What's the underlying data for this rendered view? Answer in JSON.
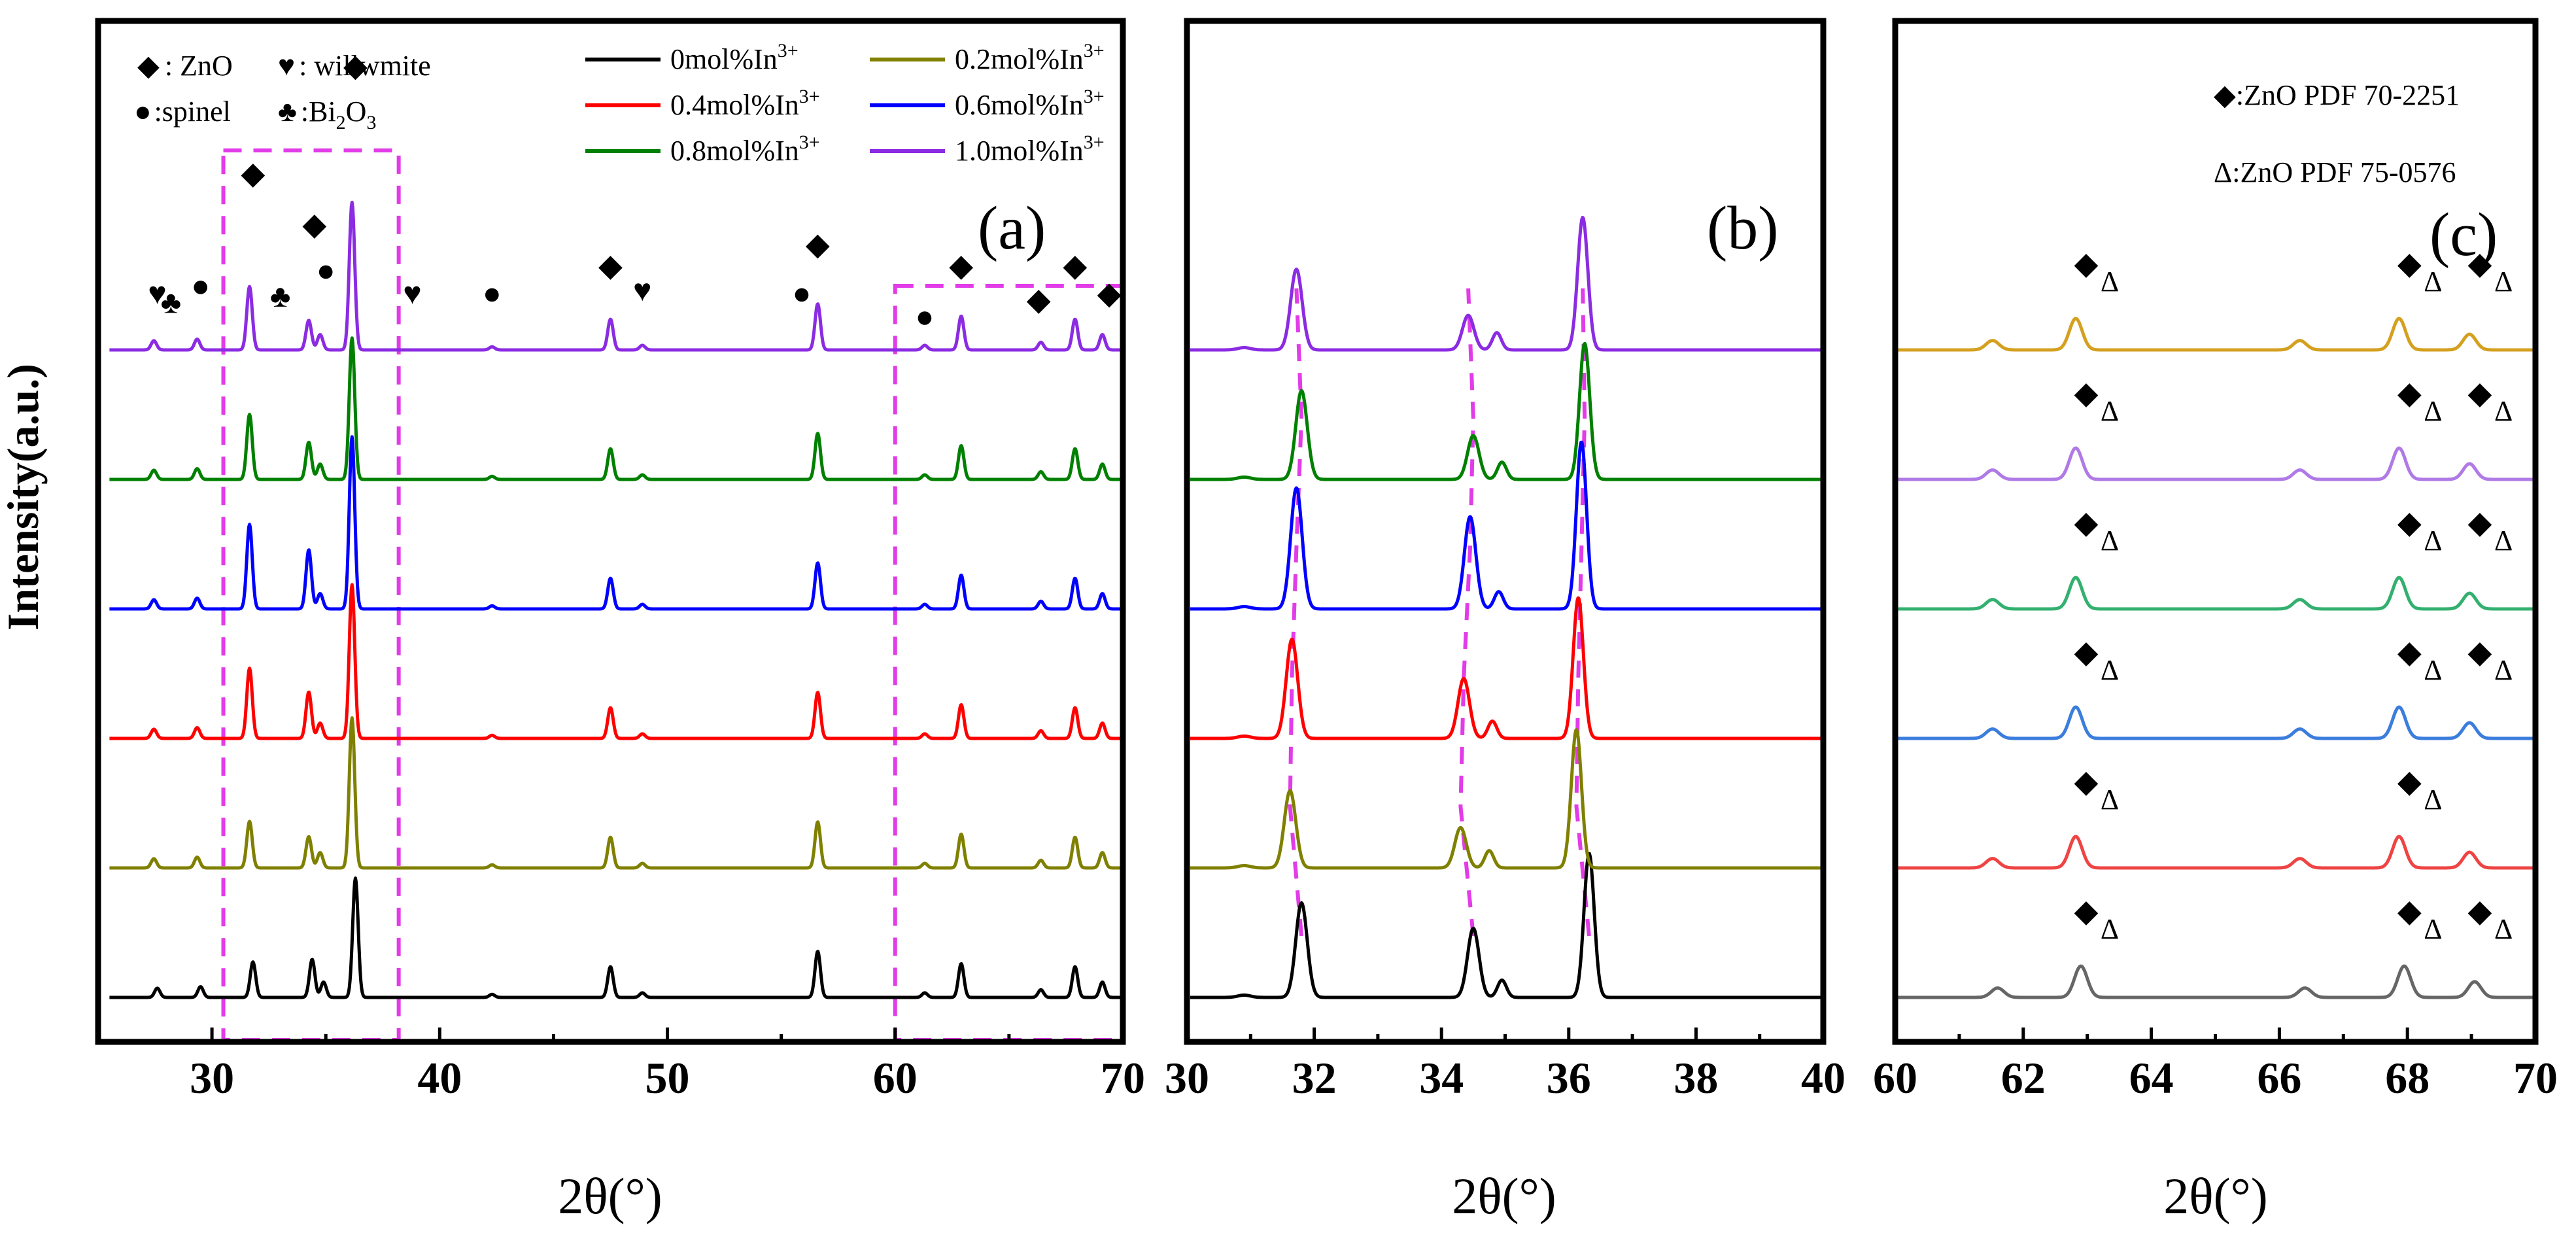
{
  "figure": {
    "ylabel": "Intensity(a.u.)",
    "xlabel": "2θ(°)"
  },
  "chart_data": [
    {
      "id": "a",
      "type": "line",
      "title": "(a)",
      "xlabel": "2θ(°)",
      "ylabel": "Intensity(a.u.)",
      "xlim": [
        25,
        70
      ],
      "x_ticks": [
        30,
        40,
        50,
        60,
        70
      ],
      "legend": [
        {
          "name": "0mol%In",
          "sup": "3+",
          "color": "#000000"
        },
        {
          "name": "0.2mol%In",
          "sup": "3+",
          "color": "#808000"
        },
        {
          "name": "0.4mol%In",
          "sup": "3+",
          "color": "#ff0000"
        },
        {
          "name": "0.6mol%In",
          "sup": "3+",
          "color": "#0000ff"
        },
        {
          "name": "0.8mol%In",
          "sup": "3+",
          "color": "#008000"
        },
        {
          "name": "1.0mol%In",
          "sup": "3+",
          "color": "#8b2be2"
        }
      ],
      "phase_key": [
        {
          "symbol": "◆",
          "label": ":  ZnO"
        },
        {
          "symbol": "♥",
          "label": ": willwmite"
        },
        {
          "symbol": "●",
          "label": ":spinel"
        },
        {
          "symbol": "♣",
          "label": ":Bi",
          "sub": "2",
          "tail": "O",
          "sub2": "3"
        }
      ],
      "series_order_bottom_to_top": [
        "0mol%In3+",
        "0.2mol%In3+",
        "0.4mol%In3+",
        "0.6mol%In3+",
        "0.8mol%In3+",
        "1.0mol%In3+"
      ],
      "series_offsets": [
        0,
        1,
        2,
        3,
        4,
        5
      ],
      "series_heights": [
        [
          0.42,
          0.45,
          0.97
        ],
        [
          0.55,
          0.37,
          1.22
        ],
        [
          0.83,
          0.55,
          1.25
        ],
        [
          1.0,
          0.7,
          1.4
        ],
        [
          0.77,
          0.44,
          1.15
        ],
        [
          0.75,
          0.35,
          1.2
        ]
      ],
      "peaks": [
        {
          "x": 27.6,
          "h": 0.06
        },
        {
          "x": 29.5,
          "h": 0.07
        },
        {
          "x": 31.8,
          "h": 0.55
        },
        {
          "x": 34.4,
          "h": 0.37
        },
        {
          "x": 34.9,
          "h": 0.1
        },
        {
          "x": 36.3,
          "h": 1.0
        },
        {
          "x": 42.3,
          "h": 0.02
        },
        {
          "x": 47.5,
          "h": 0.2
        },
        {
          "x": 48.9,
          "h": 0.03
        },
        {
          "x": 56.6,
          "h": 0.3
        },
        {
          "x": 61.3,
          "h": 0.03
        },
        {
          "x": 62.9,
          "h": 0.22
        },
        {
          "x": 66.4,
          "h": 0.05
        },
        {
          "x": 67.9,
          "h": 0.2
        },
        {
          "x": 69.1,
          "h": 0.1
        }
      ],
      "phase_markers": [
        {
          "symbol": "♥",
          "x": 27.6,
          "h": 0.3
        },
        {
          "symbol": "♣",
          "x": 28.2,
          "h": 0.24
        },
        {
          "symbol": "●",
          "x": 29.5,
          "h": 0.35
        },
        {
          "symbol": "◆",
          "x": 31.8,
          "h": 1.08
        },
        {
          "symbol": "♣",
          "x": 33.0,
          "h": 0.28
        },
        {
          "symbol": "◆",
          "x": 34.5,
          "h": 0.75
        },
        {
          "symbol": "●",
          "x": 35.0,
          "h": 0.45
        },
        {
          "symbol": "◆",
          "x": 36.3,
          "h": 1.78
        },
        {
          "symbol": "♥",
          "x": 38.8,
          "h": 0.3
        },
        {
          "symbol": "●",
          "x": 42.3,
          "h": 0.3
        },
        {
          "symbol": "◆",
          "x": 47.5,
          "h": 0.48
        },
        {
          "symbol": "♥",
          "x": 48.9,
          "h": 0.32
        },
        {
          "symbol": "●",
          "x": 55.9,
          "h": 0.3
        },
        {
          "symbol": "◆",
          "x": 56.6,
          "h": 0.62
        },
        {
          "symbol": "●",
          "x": 61.3,
          "h": 0.15
        },
        {
          "symbol": "◆",
          "x": 62.9,
          "h": 0.48
        },
        {
          "symbol": "◆",
          "x": 66.3,
          "h": 0.26
        },
        {
          "symbol": "◆",
          "x": 67.9,
          "h": 0.48
        },
        {
          "symbol": "◆",
          "x": 69.4,
          "h": 0.3
        }
      ],
      "highlight_ranges": [
        [
          30.5,
          38.2
        ],
        [
          60,
          70
        ]
      ]
    },
    {
      "id": "b",
      "type": "line",
      "title": "(b)",
      "xlabel": "2θ(°)",
      "xlim": [
        30,
        40
      ],
      "x_ticks": [
        30,
        32,
        34,
        36,
        38,
        40
      ],
      "series_order_bottom_to_top": [
        "0mol%In3+",
        "0.2mol%In3+",
        "0.4mol%In3+",
        "0.6mol%In3+",
        "0.8mol%In3+",
        "1.0mol%In3+"
      ],
      "series_offsets": [
        0,
        1,
        2,
        3,
        4,
        5
      ],
      "peak_shift": [
        [
          31.8,
          31.62,
          31.65,
          31.72,
          31.8,
          31.72
        ],
        [
          34.5,
          34.3,
          34.35,
          34.45,
          34.5,
          34.42
        ],
        [
          36.32,
          36.12,
          36.15,
          36.2,
          36.25,
          36.22
        ]
      ],
      "peak_heights": [
        [
          0.82,
          0.6,
          1.25
        ],
        [
          0.67,
          0.35,
          1.2
        ],
        [
          0.86,
          0.52,
          1.22
        ],
        [
          1.05,
          0.8,
          1.45
        ],
        [
          0.77,
          0.38,
          1.18
        ],
        [
          0.7,
          0.3,
          1.15
        ]
      ],
      "shoulder_x": 34.95
    },
    {
      "id": "c",
      "type": "line",
      "title": "(c)",
      "xlabel": "2θ(°)",
      "xlim": [
        60,
        70
      ],
      "x_ticks": [
        60,
        62,
        64,
        66,
        68,
        70
      ],
      "annotations": [
        {
          "symbol": "◆",
          "label": ":ZnO PDF 70-2251"
        },
        {
          "symbol": "Δ",
          "label": ":ZnO PDF  75-0576"
        }
      ],
      "series_order_bottom_to_top": [
        "0mol%In3+",
        "0.2mol%In3+",
        "0.4mol%In3+",
        "0.6mol%In3+",
        "0.8mol%In3+",
        "1.0mol%In3+"
      ],
      "series_colors": [
        "#666666",
        "#ee4444",
        "#3b7ddd",
        "#33b06f",
        "#b07ae6",
        "#d4a020"
      ],
      "series_offsets": [
        0,
        1,
        2,
        3,
        4,
        5
      ],
      "peaks": [
        {
          "x": 61.6,
          "h": 0.06
        },
        {
          "x": 62.9,
          "h": 0.2
        },
        {
          "x": 66.4,
          "h": 0.06
        },
        {
          "x": 67.95,
          "h": 0.2
        },
        {
          "x": 69.05,
          "h": 0.1
        }
      ],
      "marker_groups": [
        {
          "x": 62.9
        },
        {
          "x": 67.95
        },
        {
          "x": 69.05
        }
      ]
    }
  ]
}
